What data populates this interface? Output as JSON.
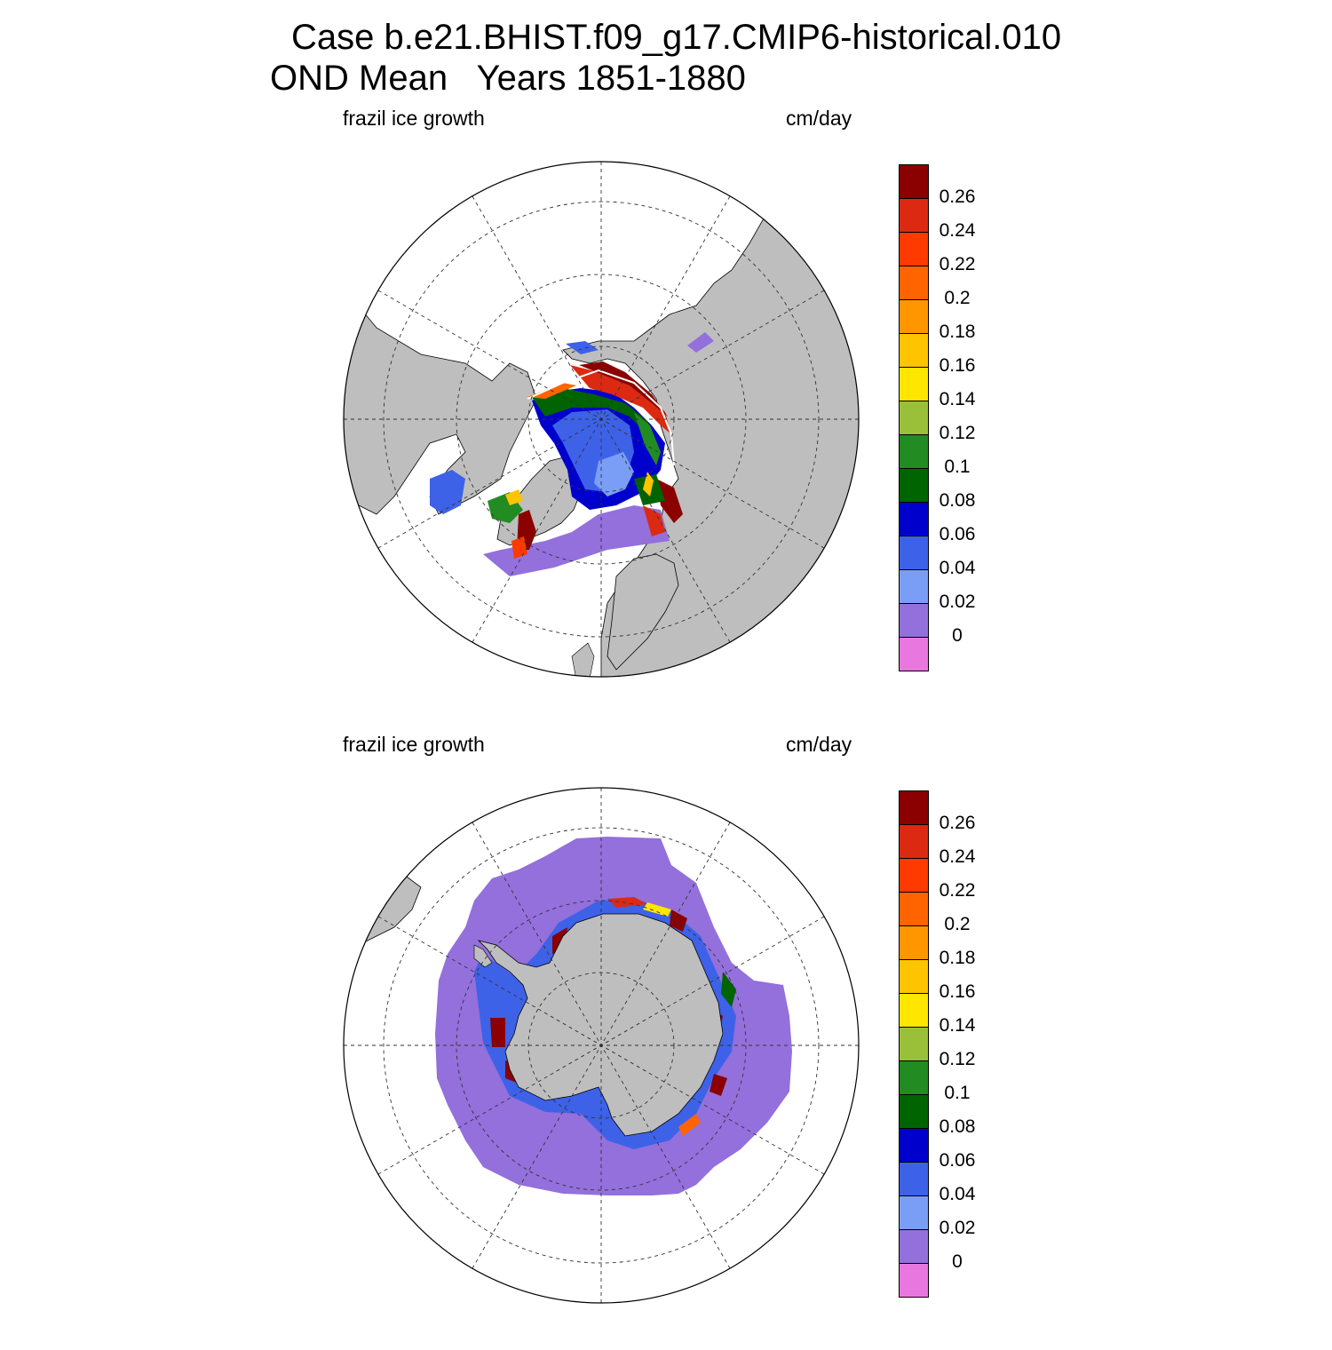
{
  "figure": {
    "title_line1": "Case b.e21.BHIST.f09_g17.CMIP6-historical.010",
    "title_line2": "OND Mean   Years 1851-1880"
  },
  "panels": [
    {
      "id": "north",
      "hemisphere": "Northern (polar stereographic)",
      "left_label": "frazil ice growth",
      "right_label": "cm/day"
    },
    {
      "id": "south",
      "hemisphere": "Southern (polar stereographic)",
      "left_label": "frazil ice growth",
      "right_label": "cm/day"
    }
  ],
  "colorbar": {
    "tick_labels": [
      "0.26",
      "0.24",
      "0.22",
      "0.2",
      "0.18",
      "0.16",
      "0.14",
      "0.12",
      "0.1",
      "0.08",
      "0.06",
      "0.04",
      "0.02",
      "0"
    ],
    "colors_top_to_bottom": [
      "#8b0000",
      "#dc2a12",
      "#ff3a00",
      "#ff6400",
      "#ff9600",
      "#ffc400",
      "#ffe600",
      "#9ac03a",
      "#228b22",
      "#006400",
      "#0000cd",
      "#3d62e8",
      "#7a9ef5",
      "#9370db",
      "#e878e0"
    ]
  },
  "map_colors": {
    "land": "#bebebe",
    "ocean_no_data": "#ffffff",
    "ring_outline": "#000000"
  }
}
